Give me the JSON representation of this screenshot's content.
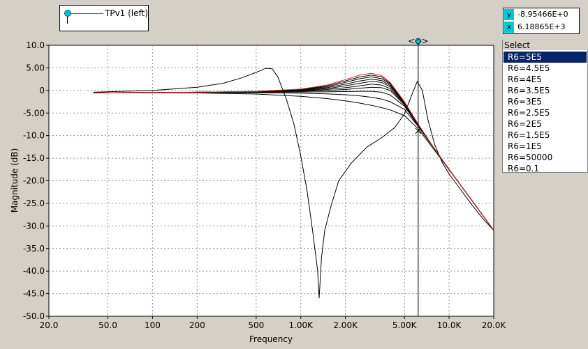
{
  "legend": {
    "label": "TPv1 (left)"
  },
  "cursor_readout": {
    "y_tag": "y",
    "y_value": "-8.95466E+0",
    "x_tag": "x",
    "x_value": "6.18865E+3"
  },
  "select_panel": {
    "title": "Select",
    "items": [
      "R6=5E5",
      "R6=4.5E5",
      "R6=4E5",
      "R6=3.5E5",
      "R6=3E5",
      "R6=2.5E5",
      "R6=2E5",
      "R6=1.5E5",
      "R6=1E5",
      "R6=50000",
      "R6=0.1"
    ],
    "selected_index": 0
  },
  "cursor_handle": "<◇>",
  "colors": {
    "background": "#d4d0c8",
    "plot_area": "#ffffff",
    "grid": "#909090",
    "trace": "#000000",
    "selected_trace": "#d03030",
    "cursor_marker": "#00c0d0",
    "selection": "#0a246a"
  },
  "chart_data": {
    "type": "line",
    "xscale": "log",
    "xlabel": "Frequency",
    "ylabel": "Magnitude  (dB)",
    "xlim": [
      20,
      20000
    ],
    "ylim": [
      -50,
      10
    ],
    "grid": true,
    "x_tick_labels": [
      "20.0",
      "50.0",
      "100",
      "200",
      "500",
      "1.00K",
      "2.00K",
      "5.00K",
      "10.0K",
      "20.0K"
    ],
    "x_tick_values": [
      20,
      50,
      100,
      200,
      500,
      1000,
      2000,
      5000,
      10000,
      20000
    ],
    "y_tick_labels": [
      "10.0",
      "5.00",
      "0",
      "-5.00",
      "-10.0",
      "-15.0",
      "-20.0",
      "-25.0",
      "-30.0",
      "-35.0",
      "-40.0",
      "-45.0",
      "-50.0"
    ],
    "y_tick_values": [
      10,
      5,
      0,
      -5,
      -10,
      -15,
      -20,
      -25,
      -30,
      -35,
      -40,
      -45,
      -50
    ],
    "cursor": {
      "x": 6188.65,
      "y": -8.95466
    },
    "series": [
      {
        "name": "R6=5E5",
        "x": [
          40,
          100,
          200,
          500,
          1000,
          1500,
          2000,
          2500,
          3000,
          3500,
          4000,
          5000,
          6200,
          8000,
          10000,
          14000,
          20000
        ],
        "y": [
          -0.5,
          -0.45,
          -0.4,
          -0.2,
          0.3,
          1.2,
          2.4,
          3.4,
          3.8,
          3.3,
          1.8,
          -2.5,
          -7.5,
          -13,
          -17.5,
          -24,
          -31
        ]
      },
      {
        "name": "R6=4.5E5",
        "x": [
          40,
          100,
          200,
          500,
          1000,
          1500,
          2000,
          2500,
          3000,
          3500,
          4000,
          5000,
          6200,
          8000,
          10000,
          14000,
          20000
        ],
        "y": [
          -0.5,
          -0.45,
          -0.4,
          -0.22,
          0.25,
          1.0,
          2.1,
          3.0,
          3.4,
          3.0,
          1.6,
          -2.6,
          -7.5,
          -13,
          -17.5,
          -24,
          -31
        ]
      },
      {
        "name": "R6=4E5",
        "x": [
          40,
          100,
          200,
          500,
          1000,
          1500,
          2000,
          2500,
          3000,
          3500,
          4000,
          5000,
          6200,
          8000,
          10000,
          14000,
          20000
        ],
        "y": [
          -0.5,
          -0.45,
          -0.4,
          -0.25,
          0.2,
          0.8,
          1.8,
          2.6,
          3.0,
          2.6,
          1.4,
          -2.7,
          -7.6,
          -13,
          -17.5,
          -24,
          -31
        ]
      },
      {
        "name": "R6=3.5E5",
        "x": [
          40,
          100,
          200,
          500,
          1000,
          1500,
          2000,
          2500,
          3000,
          3500,
          4000,
          5000,
          6200,
          8000,
          10000,
          14000,
          20000
        ],
        "y": [
          -0.5,
          -0.45,
          -0.4,
          -0.28,
          0.1,
          0.6,
          1.4,
          2.1,
          2.5,
          2.2,
          1.1,
          -2.8,
          -7.6,
          -13,
          -17.5,
          -24,
          -31
        ]
      },
      {
        "name": "R6=3E5",
        "x": [
          40,
          100,
          200,
          500,
          1000,
          1500,
          2000,
          2500,
          3000,
          3500,
          4000,
          5000,
          6200,
          8000,
          10000,
          14000,
          20000
        ],
        "y": [
          -0.5,
          -0.45,
          -0.42,
          -0.3,
          0.0,
          0.4,
          1.0,
          1.6,
          2.0,
          1.8,
          0.8,
          -2.9,
          -7.7,
          -13,
          -17.5,
          -24,
          -31
        ]
      },
      {
        "name": "R6=2.5E5",
        "x": [
          40,
          100,
          200,
          500,
          1000,
          1500,
          2000,
          2500,
          3000,
          3500,
          4000,
          5000,
          6200,
          8000,
          10000,
          14000,
          20000
        ],
        "y": [
          -0.5,
          -0.45,
          -0.42,
          -0.32,
          -0.1,
          0.2,
          0.6,
          1.0,
          1.4,
          1.2,
          0.4,
          -3.0,
          -7.7,
          -13,
          -17.5,
          -24,
          -31
        ]
      },
      {
        "name": "R6=2E5",
        "x": [
          40,
          100,
          200,
          500,
          1000,
          1500,
          2000,
          2500,
          3000,
          3500,
          4000,
          5000,
          6200,
          8000,
          10000,
          14000,
          20000
        ],
        "y": [
          -0.5,
          -0.46,
          -0.44,
          -0.35,
          -0.2,
          0.0,
          0.2,
          0.5,
          0.7,
          0.6,
          0.0,
          -3.2,
          -7.8,
          -13,
          -17.5,
          -24,
          -31
        ]
      },
      {
        "name": "R6=1.5E5",
        "x": [
          40,
          100,
          200,
          500,
          1000,
          1500,
          2000,
          2500,
          3000,
          3500,
          4000,
          5000,
          6200,
          8000,
          10000,
          14000,
          20000
        ],
        "y": [
          -0.5,
          -0.46,
          -0.45,
          -0.4,
          -0.35,
          -0.3,
          -0.25,
          -0.2,
          -0.2,
          -0.4,
          -1.0,
          -3.5,
          -7.9,
          -13,
          -17.5,
          -24,
          -31
        ]
      },
      {
        "name": "R6=1E5",
        "x": [
          40,
          100,
          200,
          500,
          1000,
          1500,
          2000,
          2500,
          3000,
          3500,
          4000,
          5000,
          6200,
          8000,
          10000,
          14000,
          20000
        ],
        "y": [
          -0.5,
          -0.47,
          -0.47,
          -0.5,
          -0.6,
          -0.75,
          -0.95,
          -1.2,
          -1.5,
          -1.9,
          -2.5,
          -4.2,
          -8.0,
          -13,
          -17.5,
          -24,
          -31
        ]
      },
      {
        "name": "R6=50000",
        "x": [
          40,
          100,
          200,
          500,
          1000,
          1500,
          2000,
          2500,
          3000,
          3500,
          4000,
          5000,
          6200,
          8000,
          10000,
          14000,
          20000
        ],
        "y": [
          -0.5,
          -0.5,
          -0.55,
          -0.8,
          -1.3,
          -1.8,
          -2.3,
          -2.8,
          -3.3,
          -3.8,
          -4.3,
          -5.6,
          -8.5,
          -13.3,
          -17.6,
          -24,
          -31
        ]
      },
      {
        "name": "R6=0.1",
        "x": [
          40,
          100,
          200,
          300,
          400,
          500,
          580,
          640,
          700,
          800,
          900,
          1000,
          1100,
          1200,
          1300,
          1330,
          1380,
          1450,
          1600,
          1800,
          2200,
          2800,
          3500,
          4300,
          5000,
          5600,
          6100,
          6600,
          7200,
          8000,
          9000,
          10000,
          12000,
          14000,
          17000,
          20000
        ],
        "y": [
          -0.4,
          0.0,
          0.7,
          1.6,
          2.8,
          4.0,
          4.9,
          4.8,
          3.0,
          -2.0,
          -7.5,
          -14.5,
          -22.0,
          -31.0,
          -40.0,
          -46.0,
          -37.0,
          -31.0,
          -25.5,
          -20.0,
          -16.0,
          -12.5,
          -10.5,
          -8.2,
          -5.2,
          -1.0,
          2.0,
          0.0,
          -6.5,
          -12.0,
          -16.0,
          -18.5,
          -22.0,
          -25.0,
          -28.5,
          -31
        ]
      }
    ]
  }
}
